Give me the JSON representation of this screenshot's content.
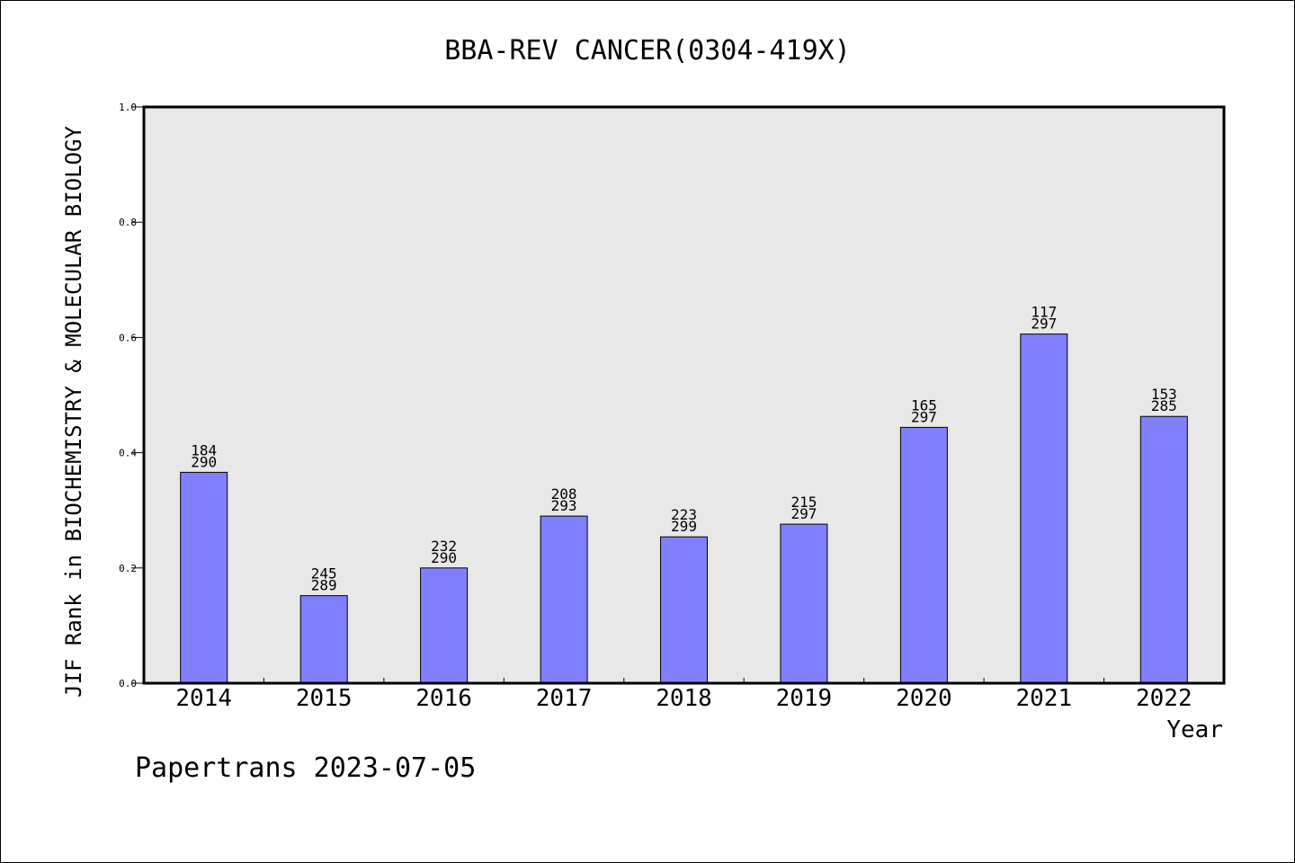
{
  "chart_data": {
    "type": "bar",
    "title": "BBA-REV CANCER(0304-419X)",
    "xlabel": "Year",
    "ylabel": "JIF Rank in BIOCHEMISTRY & MOLECULAR BIOLOGY",
    "ylim": [
      0,
      1.0
    ],
    "yticks": [
      "0.0",
      "0.2",
      "0.4",
      "0.6",
      "0.8",
      "1.0"
    ],
    "categories": [
      "2014",
      "2015",
      "2016",
      "2017",
      "2018",
      "2019",
      "2020",
      "2021",
      "2022"
    ],
    "values": [
      0.366,
      0.152,
      0.2,
      0.29,
      0.254,
      0.276,
      0.444,
      0.606,
      0.463
    ],
    "bar_labels": [
      [
        "184",
        "290"
      ],
      [
        "245",
        "289"
      ],
      [
        "232",
        "290"
      ],
      [
        "208",
        "293"
      ],
      [
        "223",
        "299"
      ],
      [
        "215",
        "297"
      ],
      [
        "165",
        "297"
      ],
      [
        "117",
        "297"
      ],
      [
        "153",
        "285"
      ]
    ],
    "bar_color": "#8080ff",
    "plot_background": "#e8e8e8",
    "grid": false
  },
  "footer": "Papertrans 2023-07-05"
}
